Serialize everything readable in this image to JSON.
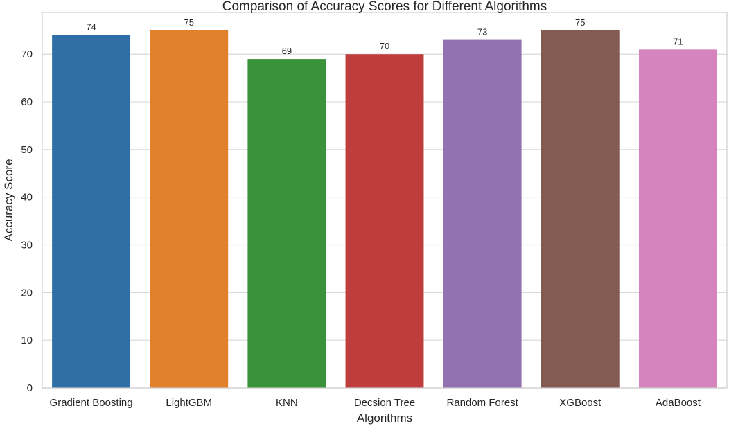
{
  "chart_data": {
    "type": "bar",
    "title": "Comparison of Accuracy Scores for Different Algorithms",
    "xlabel": "Algorithms",
    "ylabel": "Accuracy Score",
    "categories": [
      "Gradient Boosting",
      "LightGBM",
      "KNN",
      "Decsion Tree",
      "Random Forest",
      "XGBoost",
      "AdaBoost"
    ],
    "values": [
      74,
      75,
      69,
      70,
      73,
      75,
      71
    ],
    "colors": [
      "#2f6fa6",
      "#e1812c",
      "#3a923a",
      "#c03d3e",
      "#9372b2",
      "#845b53",
      "#d684bd"
    ],
    "ylim": [
      0,
      78.75
    ],
    "yticks": [
      0,
      10,
      20,
      30,
      40,
      50,
      60,
      70
    ],
    "grid": true,
    "legend": "none"
  }
}
